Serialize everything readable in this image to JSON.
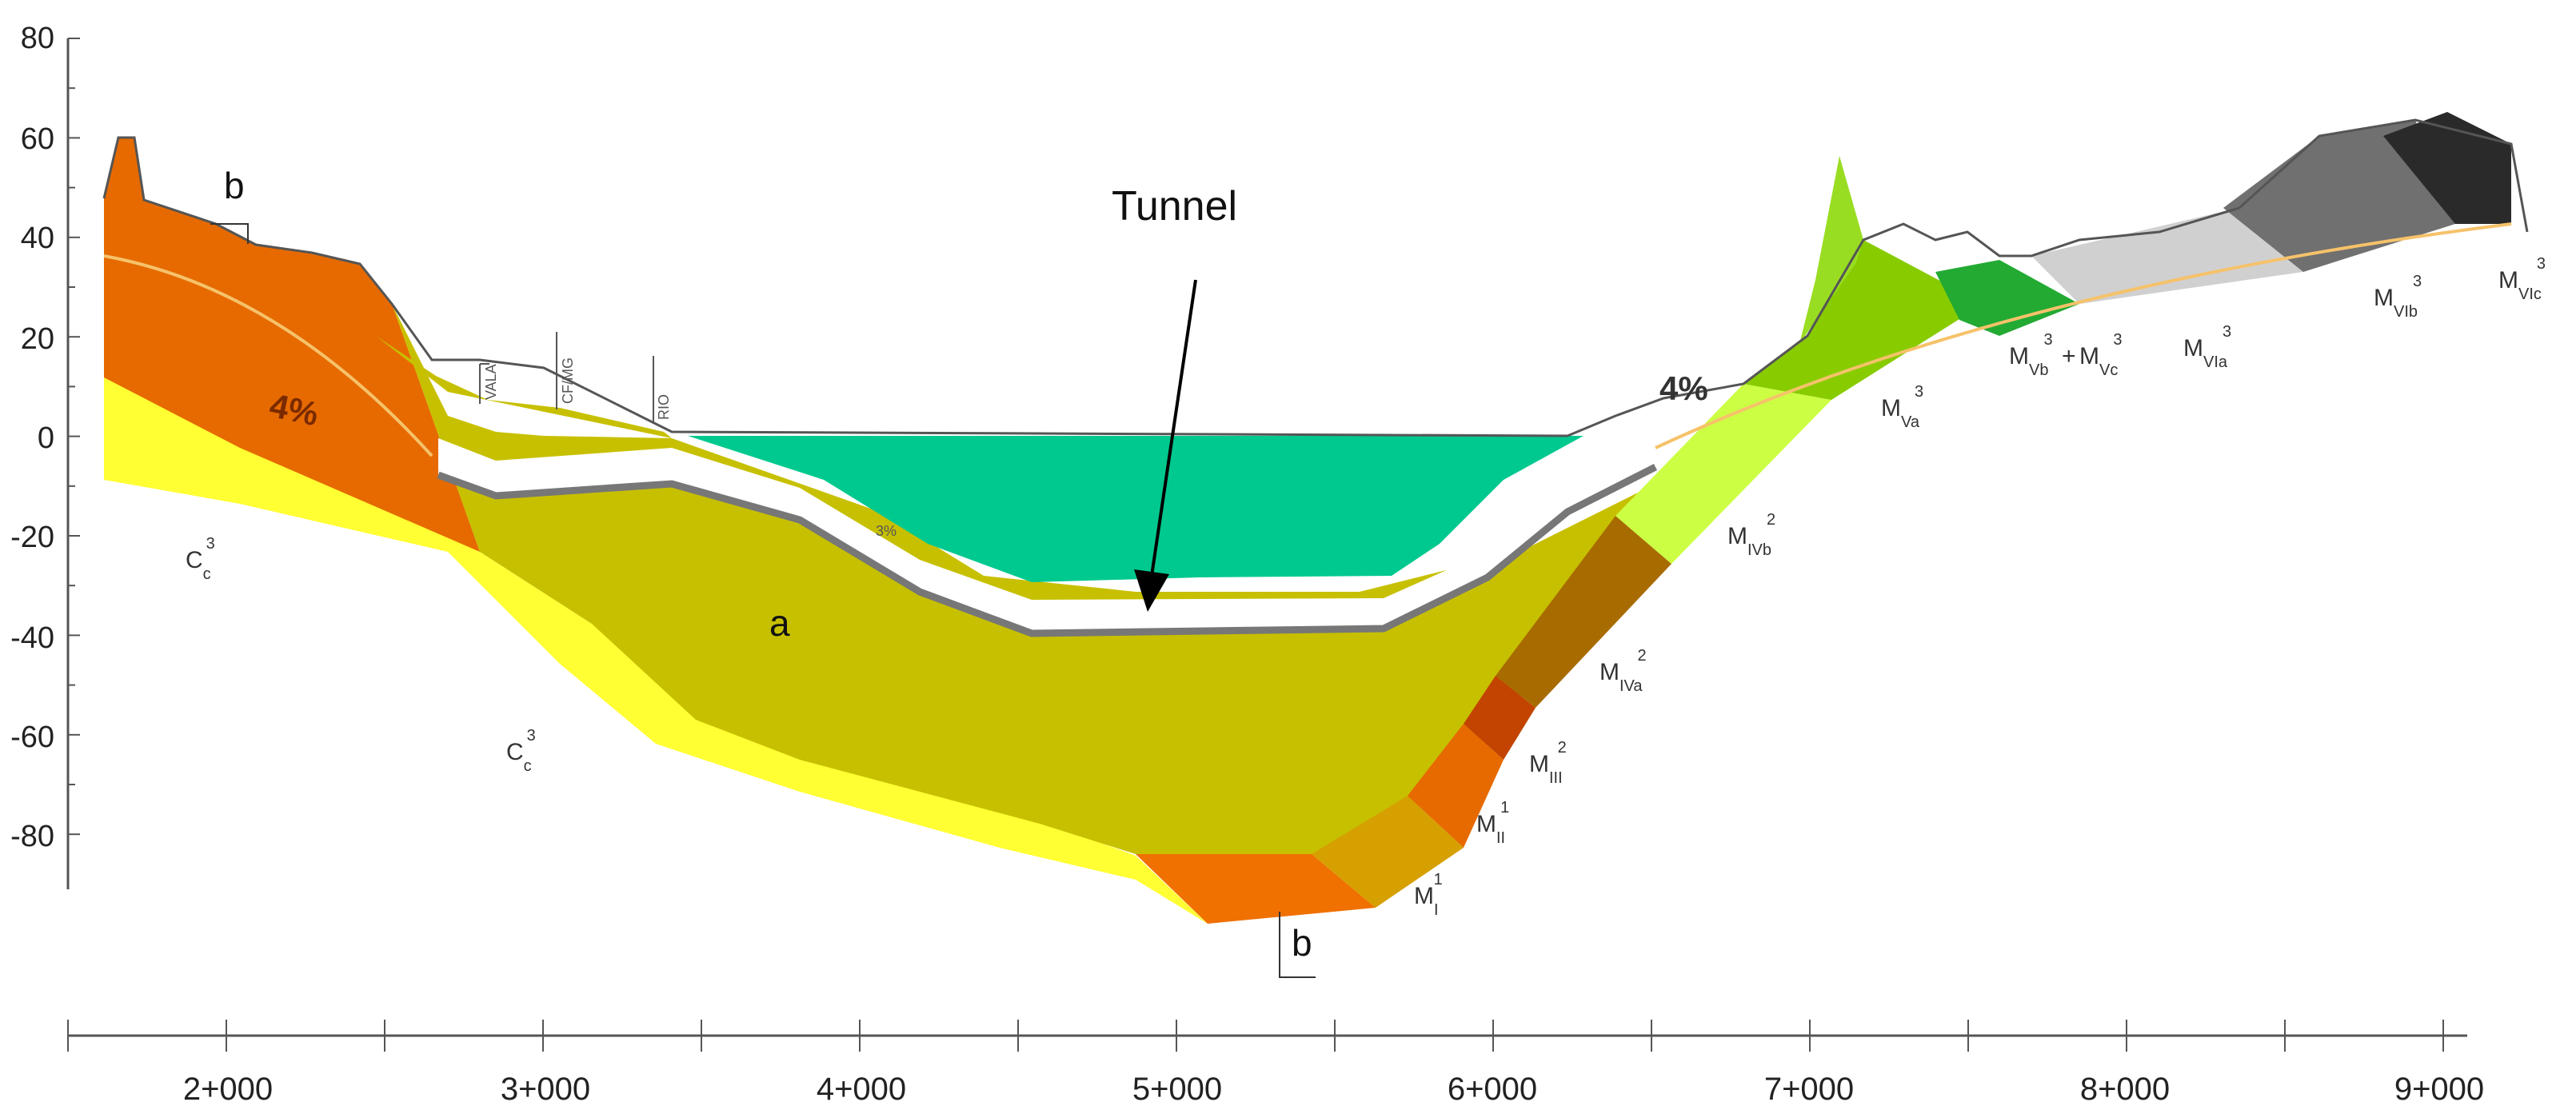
{
  "figure": {
    "callout": "Tunnel",
    "slope_left": "4%",
    "slope_right": "4%",
    "slope_center": "3%",
    "survey_marks": [
      "VALA",
      "CF/MG",
      "RIO"
    ],
    "unit_label_a": "a",
    "unit_label_b": [
      "b",
      "b"
    ],
    "geology_labels": [
      {
        "base": "C",
        "sub": "c",
        "sup": "3"
      },
      {
        "base": "C",
        "sub": "c",
        "sup": "3"
      },
      {
        "base": "M",
        "sub": "I",
        "sup": "1"
      },
      {
        "base": "M",
        "sub": "II",
        "sup": "1"
      },
      {
        "base": "M",
        "sub": "III",
        "sup": "2"
      },
      {
        "base": "M",
        "sub": "IVa",
        "sup": "2"
      },
      {
        "base": "M",
        "sub": "IVb",
        "sup": "2"
      },
      {
        "base": "M",
        "sub": "Va",
        "sup": "3"
      },
      {
        "base": "M",
        "sub": "Vb",
        "sup": "3"
      },
      {
        "base": "M",
        "sub": "Vc",
        "sup": "3"
      },
      {
        "base": "M",
        "sub": "VIa",
        "sup": "3"
      },
      {
        "base": "M",
        "sub": "VIb",
        "sup": "3"
      },
      {
        "base": "M",
        "sub": "VIc",
        "sup": "3"
      }
    ],
    "y_axis_ticks": [
      "80",
      "60",
      "40",
      "20",
      "0",
      "-20",
      "-40",
      "-60",
      "-80"
    ],
    "x_axis_ticks": [
      "2+000",
      "3+000",
      "4+000",
      "5+000",
      "6+000",
      "7+000",
      "8+000",
      "9+000"
    ],
    "colors": {
      "water": "#00c98f",
      "unit_a": "#c7c000",
      "unit_c": "#ffff33",
      "unit_b_orange": "#e66a00",
      "tunnel": "#ffffff"
    }
  }
}
